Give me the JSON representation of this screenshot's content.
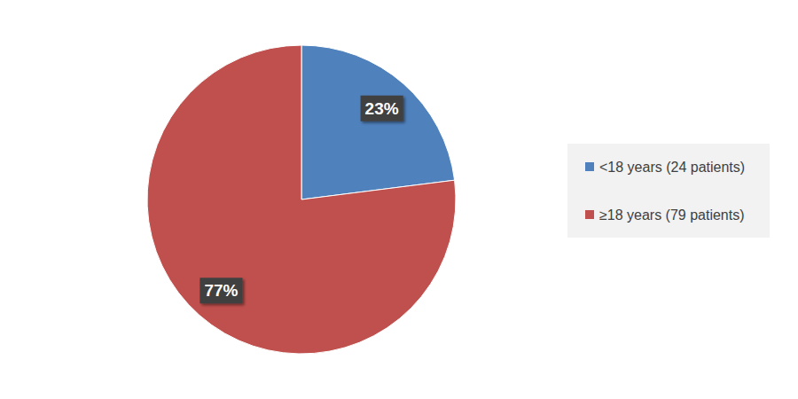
{
  "chart_data": {
    "type": "pie",
    "categories": [
      "<18 years (24 patients)",
      "≥18 years (79 patients)"
    ],
    "values": [
      23,
      77
    ],
    "value_labels": [
      "23%",
      "77%"
    ],
    "colors": [
      "#4f81bd",
      "#c0504d"
    ],
    "data_labels": true,
    "legend": "right"
  }
}
